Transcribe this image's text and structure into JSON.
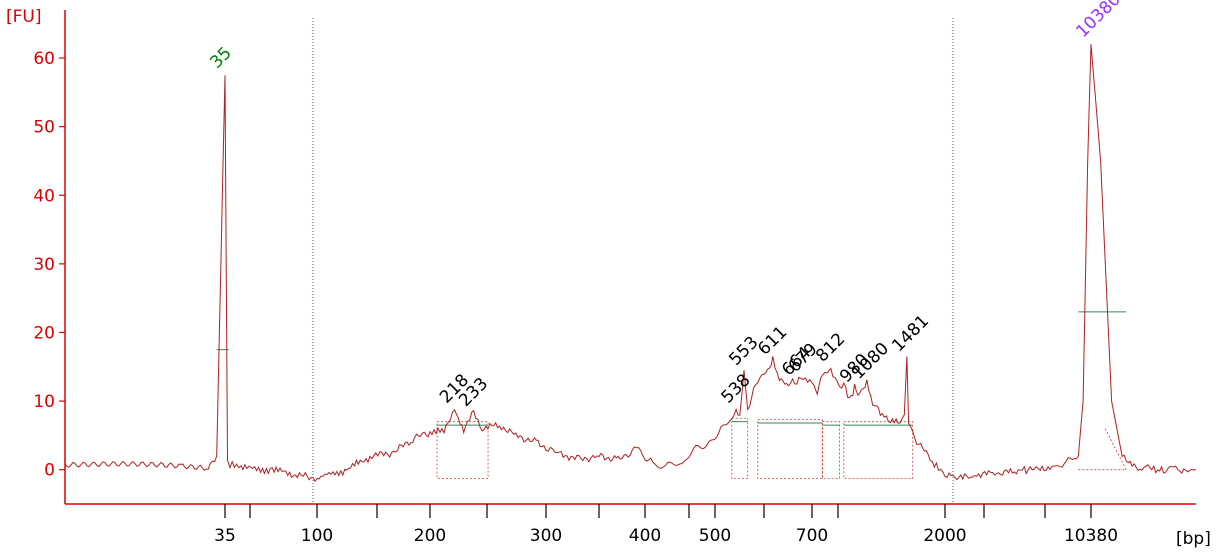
{
  "chart_data": {
    "type": "line",
    "ylabel": "[FU]",
    "xlabel": "[bp]",
    "ylim": [
      -5,
      67
    ],
    "y_ticks": [
      0,
      10,
      20,
      30,
      40,
      50,
      60
    ],
    "x_tick_labels": [
      "35",
      "100",
      "200",
      "300",
      "400",
      "500",
      "700",
      "2000",
      "10380"
    ],
    "grid": false,
    "colors": {
      "axis": "#e00000",
      "trace": "#b02020",
      "peak_region": "#d04040",
      "baseline": "#2e8b57",
      "marker_lower": "#008000",
      "marker_upper": "#9b30ff",
      "gate": "#4a5aa8"
    },
    "markers": [
      {
        "label": "35",
        "size_bp": 35,
        "height_fu": 57.5,
        "color": "#008000"
      },
      {
        "label": "10380",
        "size_bp": 10380,
        "height_fu": 62,
        "color": "#9b30ff"
      }
    ],
    "peaks": [
      {
        "label": "218",
        "size_bp": 218,
        "height_fu": 9
      },
      {
        "label": "233",
        "size_bp": 233,
        "height_fu": 8.5
      },
      {
        "label": "538",
        "size_bp": 538,
        "height_fu": 9
      },
      {
        "label": "553",
        "size_bp": 553,
        "height_fu": 14.5
      },
      {
        "label": "611",
        "size_bp": 611,
        "height_fu": 16
      },
      {
        "label": "664",
        "size_bp": 664,
        "height_fu": 13
      },
      {
        "label": "679",
        "size_bp": 679,
        "height_fu": 13.5
      },
      {
        "label": "812",
        "size_bp": 812,
        "height_fu": 15
      },
      {
        "label": "980",
        "size_bp": 980,
        "height_fu": 12
      },
      {
        "label": "1080",
        "size_bp": 1080,
        "height_fu": 12.5
      },
      {
        "label": "1481",
        "size_bp": 1481,
        "height_fu": 16.5
      }
    ],
    "series": [
      {
        "values": [
          [
            20,
            0.7
          ],
          [
            30,
            0.5
          ],
          [
            33,
            0.4
          ],
          [
            34,
            2
          ],
          [
            34.5,
            30
          ],
          [
            35,
            57.5
          ],
          [
            35.5,
            30
          ],
          [
            36,
            2
          ],
          [
            37,
            0.5
          ],
          [
            38,
            1
          ],
          [
            42,
            0.2
          ],
          [
            60,
            0
          ],
          [
            80,
            -0.8
          ],
          [
            100,
            -1.3
          ],
          [
            120,
            0
          ],
          [
            140,
            2
          ],
          [
            160,
            2.5
          ],
          [
            180,
            4.5
          ],
          [
            200,
            5.5
          ],
          [
            210,
            5.5
          ],
          [
            218,
            9
          ],
          [
            225,
            5.5
          ],
          [
            233,
            8.5
          ],
          [
            240,
            6
          ],
          [
            255,
            6.5
          ],
          [
            270,
            5
          ],
          [
            290,
            4
          ],
          [
            310,
            2.5
          ],
          [
            330,
            1.5
          ],
          [
            350,
            2
          ],
          [
            370,
            1.5
          ],
          [
            390,
            3
          ],
          [
            410,
            1
          ],
          [
            430,
            0.5
          ],
          [
            450,
            1
          ],
          [
            470,
            3
          ],
          [
            490,
            4
          ],
          [
            510,
            6
          ],
          [
            530,
            7
          ],
          [
            538,
            9
          ],
          [
            545,
            8
          ],
          [
            553,
            14.5
          ],
          [
            560,
            9
          ],
          [
            580,
            13
          ],
          [
            600,
            14.5
          ],
          [
            611,
            16
          ],
          [
            625,
            13
          ],
          [
            645,
            12.5
          ],
          [
            664,
            13
          ],
          [
            679,
            13.5
          ],
          [
            700,
            12.5
          ],
          [
            730,
            11
          ],
          [
            760,
            14
          ],
          [
            790,
            14.5
          ],
          [
            812,
            15
          ],
          [
            840,
            13
          ],
          [
            870,
            12
          ],
          [
            900,
            12.5
          ],
          [
            940,
            10
          ],
          [
            980,
            12
          ],
          [
            1020,
            11
          ],
          [
            1080,
            12.5
          ],
          [
            1130,
            10
          ],
          [
            1200,
            8
          ],
          [
            1300,
            7
          ],
          [
            1400,
            7
          ],
          [
            1450,
            8
          ],
          [
            1481,
            16.5
          ],
          [
            1500,
            7
          ],
          [
            1600,
            4
          ],
          [
            1750,
            2
          ],
          [
            1900,
            0
          ],
          [
            2000,
            -1
          ],
          [
            2500,
            -1
          ],
          [
            3500,
            -0.5
          ],
          [
            5000,
            0
          ],
          [
            7000,
            0.5
          ],
          [
            9000,
            2
          ],
          [
            9500,
            10
          ],
          [
            10000,
            45
          ],
          [
            10380,
            62
          ],
          [
            10800,
            45
          ],
          [
            11300,
            10
          ],
          [
            11800,
            2
          ],
          [
            12500,
            0.5
          ],
          [
            14000,
            0
          ],
          [
            16000,
            0
          ]
        ]
      }
    ]
  }
}
